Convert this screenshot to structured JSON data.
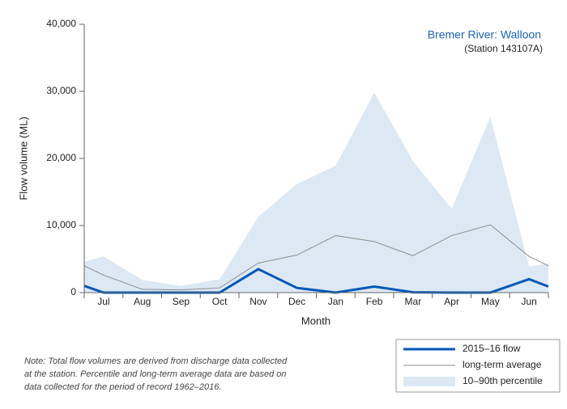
{
  "chart_data": {
    "type": "line",
    "title": "Bremer River: Walloon",
    "subtitle": "(Station 143107A)",
    "x_label": "Month",
    "y_label": "Flow volume (ML)",
    "categories": [
      null,
      "Jul",
      "Aug",
      "Sep",
      "Oct",
      "Nov",
      "Dec",
      "Jan",
      "Feb",
      "Mar",
      "Apr",
      "May",
      "Jun",
      null
    ],
    "series": [
      {
        "name": "2015–16 flow",
        "kind": "line",
        "color": "#0057b8",
        "values": [
          1000,
          0,
          0,
          0,
          0,
          3500,
          700,
          0,
          900,
          50,
          0,
          0,
          2000,
          900
        ]
      },
      {
        "name": "long-term average",
        "kind": "line",
        "color": "#8c8c8c",
        "values": [
          4000,
          2600,
          500,
          400,
          700,
          4400,
          5600,
          8500,
          7600,
          5500,
          8500,
          10100,
          5400,
          4000
        ]
      },
      {
        "name": "10–90th percentile",
        "kind": "area",
        "color": "#dce9f4",
        "values": [
          4600,
          5400,
          1900,
          1000,
          2000,
          11300,
          16200,
          18900,
          29800,
          19600,
          12500,
          26200,
          3900,
          4300
        ]
      }
    ],
    "ylim": [
      0,
      40000
    ],
    "yticks": [
      {
        "value": 0,
        "label": "0"
      },
      {
        "value": 10000,
        "label": "10,000"
      },
      {
        "value": 20000,
        "label": "20,000"
      },
      {
        "value": 30000,
        "label": "30,000"
      },
      {
        "value": 40000,
        "label": "40,000"
      }
    ],
    "note": [
      "Note: Total flow volumes are derived from discharge data collected",
      "at the station. Percentile and long-term average data are based on",
      "data collected for the period of record 1962–2016."
    ]
  }
}
